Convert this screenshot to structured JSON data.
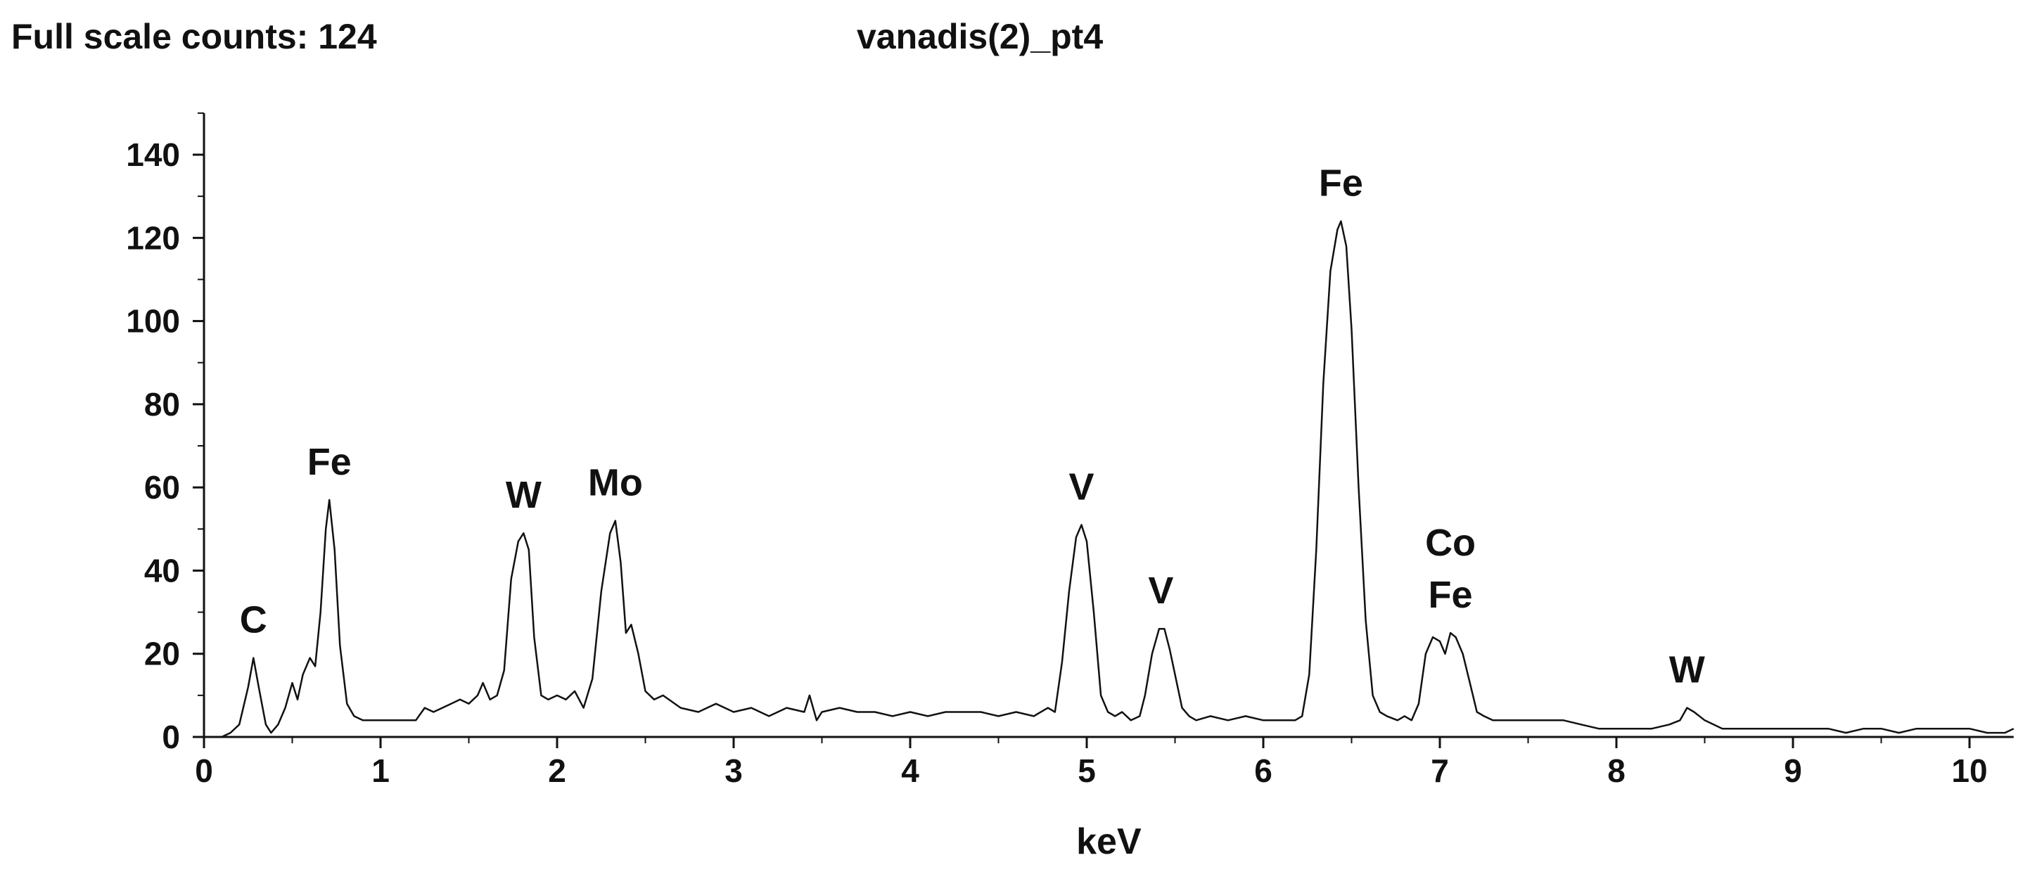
{
  "header": {
    "full_scale_label": "Full scale counts:",
    "full_scale_value": "124",
    "title": "vanadis(2)_pt4"
  },
  "chart_data": {
    "type": "line",
    "title": "vanadis(2)_pt4",
    "xlabel": "keV",
    "ylabel": "",
    "xlim": [
      0,
      10.25
    ],
    "ylim": [
      0,
      150
    ],
    "x_ticks": [
      0,
      1,
      2,
      3,
      4,
      5,
      6,
      7,
      8,
      9,
      10
    ],
    "y_ticks": [
      0,
      20,
      40,
      60,
      80,
      100,
      120,
      140
    ],
    "x_tick_labels": [
      "0",
      "1",
      "2",
      "3",
      "4",
      "5",
      "6",
      "7",
      "8",
      "9",
      "10"
    ],
    "y_tick_labels": [
      "0",
      "20",
      "40",
      "60",
      "80",
      "100",
      "120",
      "140"
    ],
    "line_color": "#111111",
    "series": [
      {
        "points": [
          [
            0.0,
            0
          ],
          [
            0.1,
            0
          ],
          [
            0.15,
            1
          ],
          [
            0.2,
            3
          ],
          [
            0.25,
            12
          ],
          [
            0.28,
            19
          ],
          [
            0.31,
            12
          ],
          [
            0.35,
            3
          ],
          [
            0.38,
            1
          ],
          [
            0.42,
            3
          ],
          [
            0.46,
            7
          ],
          [
            0.5,
            13
          ],
          [
            0.53,
            9
          ],
          [
            0.56,
            15
          ],
          [
            0.6,
            19
          ],
          [
            0.63,
            17
          ],
          [
            0.66,
            30
          ],
          [
            0.69,
            50
          ],
          [
            0.71,
            57
          ],
          [
            0.74,
            45
          ],
          [
            0.77,
            22
          ],
          [
            0.81,
            8
          ],
          [
            0.85,
            5
          ],
          [
            0.9,
            4
          ],
          [
            1.0,
            4
          ],
          [
            1.1,
            4
          ],
          [
            1.2,
            4
          ],
          [
            1.25,
            7
          ],
          [
            1.3,
            6
          ],
          [
            1.35,
            7
          ],
          [
            1.4,
            8
          ],
          [
            1.45,
            9
          ],
          [
            1.5,
            8
          ],
          [
            1.55,
            10
          ],
          [
            1.58,
            13
          ],
          [
            1.62,
            9
          ],
          [
            1.66,
            10
          ],
          [
            1.7,
            16
          ],
          [
            1.74,
            38
          ],
          [
            1.78,
            47
          ],
          [
            1.81,
            49
          ],
          [
            1.84,
            45
          ],
          [
            1.87,
            24
          ],
          [
            1.91,
            10
          ],
          [
            1.95,
            9
          ],
          [
            2.0,
            10
          ],
          [
            2.05,
            9
          ],
          [
            2.1,
            11
          ],
          [
            2.15,
            7
          ],
          [
            2.2,
            14
          ],
          [
            2.25,
            35
          ],
          [
            2.3,
            49
          ],
          [
            2.33,
            52
          ],
          [
            2.36,
            42
          ],
          [
            2.39,
            25
          ],
          [
            2.42,
            27
          ],
          [
            2.46,
            20
          ],
          [
            2.5,
            11
          ],
          [
            2.55,
            9
          ],
          [
            2.6,
            10
          ],
          [
            2.7,
            7
          ],
          [
            2.8,
            6
          ],
          [
            2.9,
            8
          ],
          [
            3.0,
            6
          ],
          [
            3.1,
            7
          ],
          [
            3.2,
            5
          ],
          [
            3.3,
            7
          ],
          [
            3.4,
            6
          ],
          [
            3.43,
            10
          ],
          [
            3.47,
            4
          ],
          [
            3.5,
            6
          ],
          [
            3.6,
            7
          ],
          [
            3.7,
            6
          ],
          [
            3.8,
            6
          ],
          [
            3.9,
            5
          ],
          [
            4.0,
            6
          ],
          [
            4.1,
            5
          ],
          [
            4.2,
            6
          ],
          [
            4.3,
            6
          ],
          [
            4.4,
            6
          ],
          [
            4.5,
            5
          ],
          [
            4.6,
            6
          ],
          [
            4.7,
            5
          ],
          [
            4.78,
            7
          ],
          [
            4.82,
            6
          ],
          [
            4.86,
            18
          ],
          [
            4.9,
            35
          ],
          [
            4.94,
            48
          ],
          [
            4.97,
            51
          ],
          [
            5.0,
            47
          ],
          [
            5.04,
            30
          ],
          [
            5.08,
            10
          ],
          [
            5.12,
            6
          ],
          [
            5.16,
            5
          ],
          [
            5.2,
            6
          ],
          [
            5.25,
            4
          ],
          [
            5.3,
            5
          ],
          [
            5.33,
            10
          ],
          [
            5.37,
            20
          ],
          [
            5.41,
            26
          ],
          [
            5.44,
            26
          ],
          [
            5.47,
            21
          ],
          [
            5.5,
            15
          ],
          [
            5.54,
            7
          ],
          [
            5.58,
            5
          ],
          [
            5.62,
            4
          ],
          [
            5.7,
            5
          ],
          [
            5.8,
            4
          ],
          [
            5.9,
            5
          ],
          [
            6.0,
            4
          ],
          [
            6.1,
            4
          ],
          [
            6.18,
            4
          ],
          [
            6.22,
            5
          ],
          [
            6.26,
            15
          ],
          [
            6.3,
            45
          ],
          [
            6.34,
            85
          ],
          [
            6.38,
            112
          ],
          [
            6.42,
            122
          ],
          [
            6.44,
            124
          ],
          [
            6.47,
            118
          ],
          [
            6.5,
            98
          ],
          [
            6.54,
            60
          ],
          [
            6.58,
            28
          ],
          [
            6.62,
            10
          ],
          [
            6.66,
            6
          ],
          [
            6.7,
            5
          ],
          [
            6.76,
            4
          ],
          [
            6.8,
            5
          ],
          [
            6.84,
            4
          ],
          [
            6.88,
            8
          ],
          [
            6.92,
            20
          ],
          [
            6.96,
            24
          ],
          [
            7.0,
            23
          ],
          [
            7.03,
            20
          ],
          [
            7.06,
            25
          ],
          [
            7.09,
            24
          ],
          [
            7.13,
            20
          ],
          [
            7.17,
            13
          ],
          [
            7.21,
            6
          ],
          [
            7.25,
            5
          ],
          [
            7.3,
            4
          ],
          [
            7.4,
            4
          ],
          [
            7.5,
            4
          ],
          [
            7.6,
            4
          ],
          [
            7.7,
            4
          ],
          [
            7.8,
            3
          ],
          [
            7.9,
            2
          ],
          [
            8.0,
            2
          ],
          [
            8.1,
            2
          ],
          [
            8.2,
            2
          ],
          [
            8.3,
            3
          ],
          [
            8.36,
            4
          ],
          [
            8.4,
            7
          ],
          [
            8.44,
            6
          ],
          [
            8.5,
            4
          ],
          [
            8.6,
            2
          ],
          [
            8.7,
            2
          ],
          [
            8.8,
            2
          ],
          [
            8.9,
            2
          ],
          [
            9.0,
            2
          ],
          [
            9.1,
            2
          ],
          [
            9.2,
            2
          ],
          [
            9.3,
            1
          ],
          [
            9.4,
            2
          ],
          [
            9.5,
            2
          ],
          [
            9.6,
            1
          ],
          [
            9.7,
            2
          ],
          [
            9.8,
            2
          ],
          [
            9.9,
            2
          ],
          [
            10.0,
            2
          ],
          [
            10.1,
            1
          ],
          [
            10.2,
            1
          ],
          [
            10.25,
            2
          ]
        ]
      }
    ],
    "peak_labels": [
      {
        "text": "C",
        "x": 0.28,
        "y": 19
      },
      {
        "text": "Fe",
        "x": 0.71,
        "y": 57
      },
      {
        "text": "W",
        "x": 1.81,
        "y": 49
      },
      {
        "text": "Mo",
        "x": 2.33,
        "y": 52
      },
      {
        "text": "V",
        "x": 4.97,
        "y": 51
      },
      {
        "text": "V",
        "x": 5.42,
        "y": 26
      },
      {
        "text": "Fe",
        "x": 6.44,
        "y": 124
      },
      {
        "text": "Fe",
        "x": 7.06,
        "y": 25
      },
      {
        "text": "Co",
        "x": 7.06,
        "y": 25,
        "stack": 1
      },
      {
        "text": "W",
        "x": 8.4,
        "y": 7
      }
    ]
  }
}
